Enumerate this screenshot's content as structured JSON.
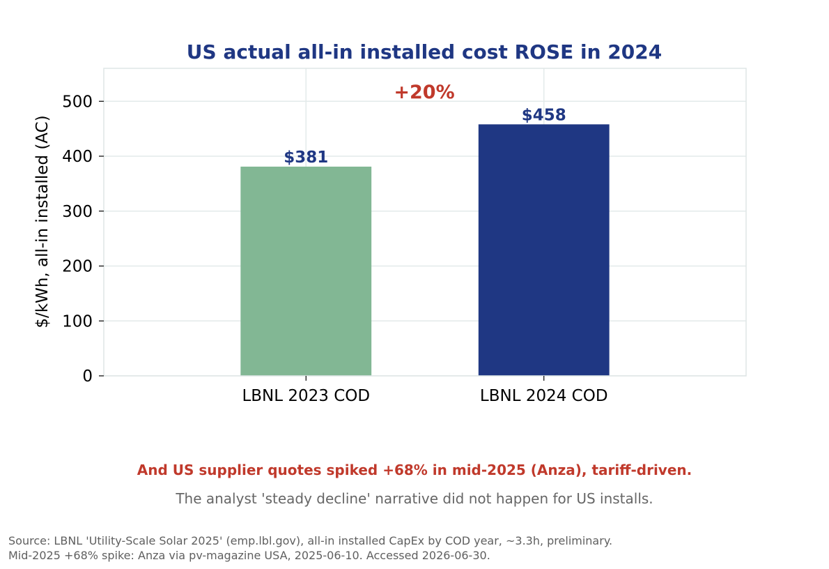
{
  "chart_data": {
    "type": "bar",
    "title": "US actual all-in installed cost ROSE in 2024",
    "ylabel": "$/kWh, all-in installed (AC)",
    "xlabel": "",
    "categories": [
      "LBNL 2023 COD",
      "LBNL 2024 COD"
    ],
    "values": [
      381,
      458
    ],
    "data_labels": [
      "$381",
      "$458"
    ],
    "bar_colors": [
      "#82b794",
      "#1f3783"
    ],
    "ylim": [
      0,
      560
    ],
    "yticks": [
      0,
      100,
      200,
      300,
      400,
      500
    ],
    "grid": true,
    "change_annotation": "+20%",
    "colors": {
      "title": "#1f3783",
      "data_label": "#1f3783",
      "change": "#c0392b",
      "grid": "#e3eaea"
    }
  },
  "notes": {
    "headline": "And US supplier quotes spiked +68% in mid-2025 (Anza), tariff-driven.",
    "subline": "The analyst 'steady decline' narrative did not happen for US installs."
  },
  "source": {
    "line1": "Source: LBNL 'Utility-Scale Solar 2025' (emp.lbl.gov), all-in installed CapEx by COD year, ~3.3h, preliminary.",
    "line2": "Mid-2025 +68% spike: Anza via pv-magazine USA, 2025-06-10. Accessed 2026-06-30."
  }
}
